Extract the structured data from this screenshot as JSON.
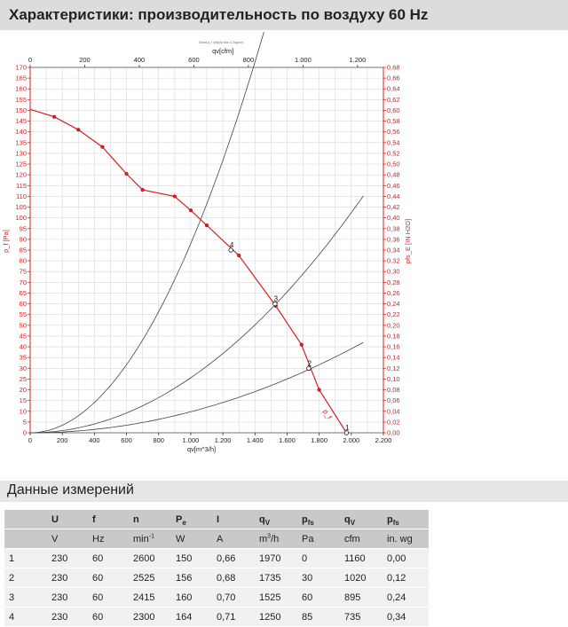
{
  "header": {
    "title": "Характеристики: производительность по воздуху 60 Hz"
  },
  "section": {
    "title": "Данные измерений"
  },
  "chart_data": {
    "type": "line",
    "small_caption": "Druck p_f @fp(fp 60z=1.2kg/m³)",
    "x_axis": {
      "label": "qv[m^3/h]",
      "range": [
        0,
        2200
      ],
      "ticks": [
        "0",
        "200",
        "400",
        "600",
        "800",
        "1.000",
        "1.200",
        "1.400",
        "1.600",
        "1.800",
        "2.000",
        "2.200"
      ]
    },
    "x2_axis": {
      "label": "qv[cfm]",
      "range": [
        0,
        1294.8
      ],
      "ticks": [
        "0",
        "200",
        "400",
        "600",
        "800",
        "1.000",
        "1.200"
      ]
    },
    "y_axis": {
      "label": "p_f [Pa]",
      "range": [
        0,
        170
      ],
      "step": 5
    },
    "y2_axis": {
      "label": "pfs_E [IN H2O]",
      "range": [
        0,
        0.68
      ],
      "step": 0.02
    },
    "grid": true,
    "color_curve": "#d42020",
    "color_system": "#444444",
    "fan_curve": {
      "name": "p_f",
      "x": [
        0,
        150,
        300,
        450,
        600,
        700,
        900,
        1000,
        1100,
        1300,
        1530,
        1690,
        1800,
        1970
      ],
      "y": [
        150.5,
        147,
        141,
        133,
        120.5,
        113,
        110,
        103.5,
        96.5,
        82.5,
        59,
        41,
        20,
        0
      ]
    },
    "system_curves": [
      {
        "k": 8.8e-05,
        "xmax": 1700
      },
      {
        "k": 2.56e-05,
        "xmax": 2075
      },
      {
        "k": 9.77e-06,
        "xmax": 2075
      }
    ],
    "operating_points": [
      {
        "label": "1",
        "x": 1970,
        "y": 0
      },
      {
        "label": "2",
        "x": 1735,
        "y": 30
      },
      {
        "label": "3",
        "x": 1525,
        "y": 60
      },
      {
        "label": "4",
        "x": 1250,
        "y": 85
      }
    ]
  },
  "table": {
    "headers_row1": [
      "",
      "U",
      "f",
      "n",
      "P",
      "I",
      "q",
      "p",
      "q",
      "p"
    ],
    "headers_sub": [
      "",
      "",
      "",
      "",
      "e",
      "",
      "V",
      "fs",
      "V",
      "fs"
    ],
    "headers_row2": [
      "",
      "V",
      "Hz",
      "min",
      "W",
      "A",
      "m",
      "Pa",
      "cfm",
      "in. wg"
    ],
    "units_sup": {
      "n": "-1",
      "m3": "3"
    },
    "units_tail": {
      "m3h": "/h"
    },
    "rows": [
      [
        "1",
        "230",
        "60",
        "2600",
        "150",
        "0,66",
        "1970",
        "0",
        "1160",
        "0,00"
      ],
      [
        "2",
        "230",
        "60",
        "2525",
        "156",
        "0,68",
        "1735",
        "30",
        "1020",
        "0,12"
      ],
      [
        "3",
        "230",
        "60",
        "2415",
        "160",
        "0,70",
        "1525",
        "60",
        "895",
        "0,24"
      ],
      [
        "4",
        "230",
        "60",
        "2300",
        "164",
        "0,71",
        "1250",
        "85",
        "735",
        "0,34"
      ]
    ]
  }
}
